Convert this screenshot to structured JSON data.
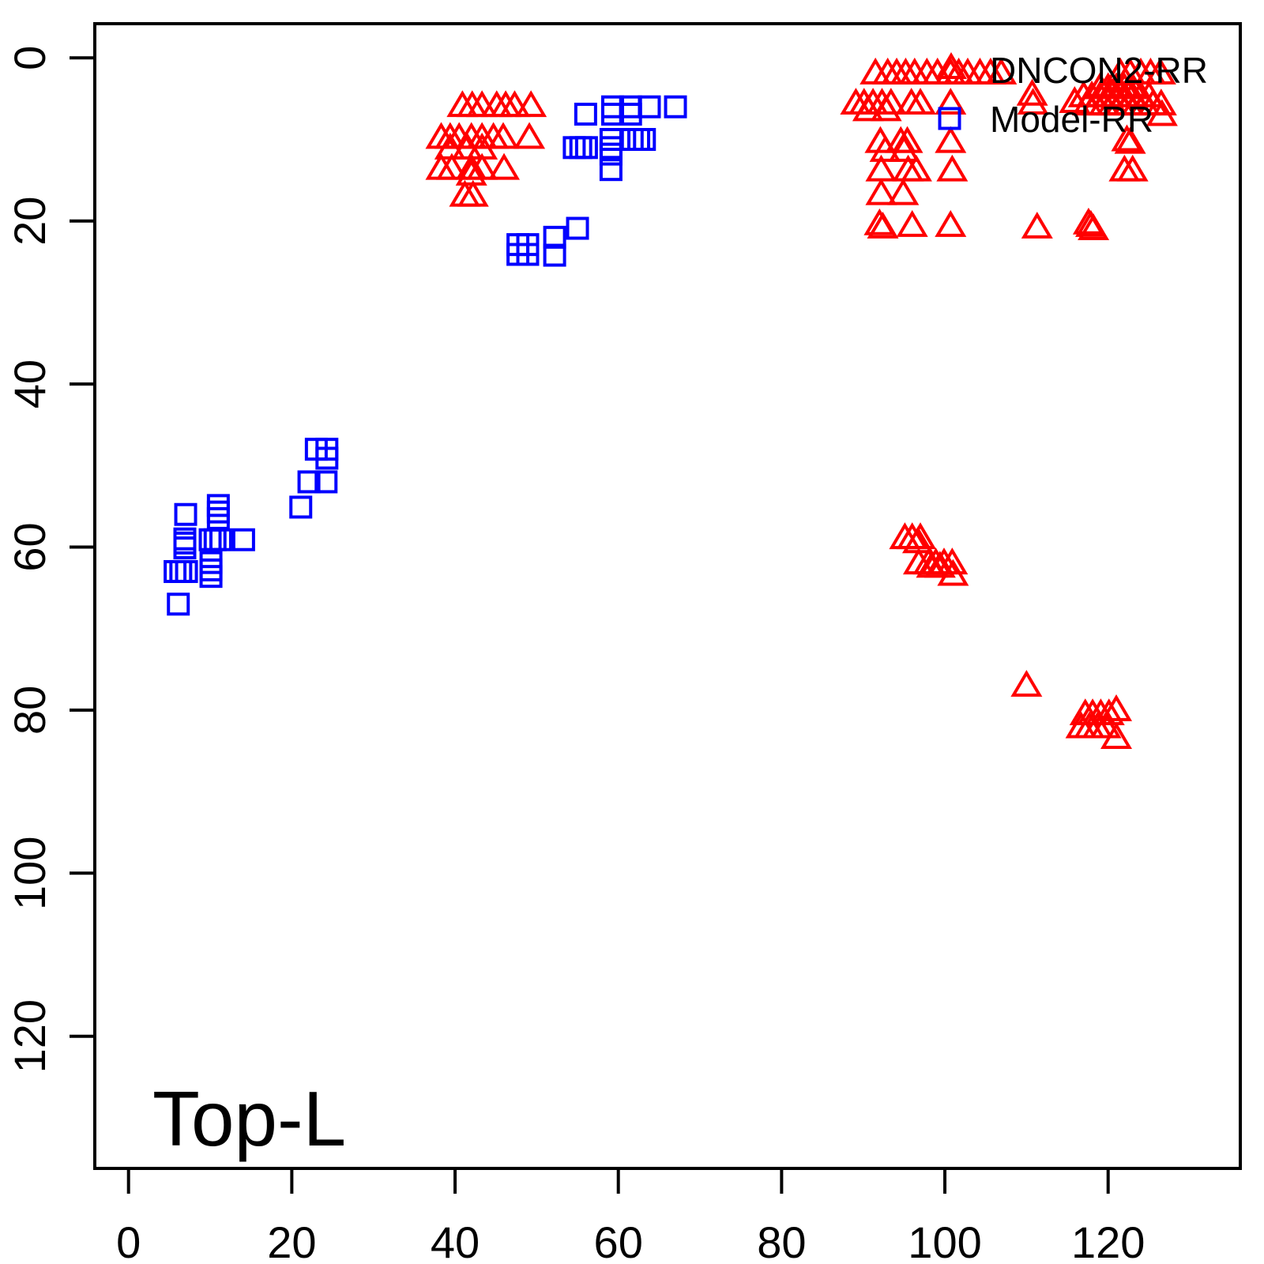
{
  "figure": {
    "background": "#ffffff",
    "frame_color": "#000000"
  },
  "chart_data": {
    "type": "scatter",
    "title": "",
    "xlabel": "",
    "ylabel": "",
    "annotation": "Top-L",
    "x_ticks": [
      0,
      20,
      40,
      60,
      80,
      100,
      120
    ],
    "y_ticks": [
      0,
      20,
      40,
      60,
      80,
      100,
      120
    ],
    "xlim": [
      -4.2,
      136.2
    ],
    "ylim": [
      136.2,
      -4.2
    ],
    "y_axis_reversed": true,
    "grid": false,
    "legend": {
      "position": "topright",
      "entries": [
        {
          "label": "DNCON2-RR",
          "marker": "triangle",
          "color": "#FF0000"
        },
        {
          "label": "Model-RR",
          "marker": "square",
          "color": "#0000FF"
        }
      ]
    },
    "series": [
      {
        "name": "Model-RR",
        "marker": "square",
        "color": "#0000FF",
        "points": [
          [
            56.0,
            6.9
          ],
          [
            59.3,
            6.9
          ],
          [
            61.5,
            6.9
          ],
          [
            59.3,
            6.0
          ],
          [
            61.5,
            6.0
          ],
          [
            63.8,
            6.0
          ],
          [
            67.0,
            6.0
          ],
          [
            54.6,
            11.0
          ],
          [
            55.4,
            11.0
          ],
          [
            56.1,
            11.0
          ],
          [
            59.1,
            10.0
          ],
          [
            59.1,
            11.0
          ],
          [
            59.1,
            11.8
          ],
          [
            61.7,
            10.0
          ],
          [
            62.5,
            10.0
          ],
          [
            63.2,
            10.0
          ],
          [
            59.1,
            13.7
          ],
          [
            55.0,
            20.9
          ],
          [
            47.7,
            22.9
          ],
          [
            48.9,
            22.9
          ],
          [
            47.7,
            24.1
          ],
          [
            48.9,
            24.1
          ],
          [
            52.2,
            22.0
          ],
          [
            52.2,
            24.2
          ],
          [
            23.0,
            48.0
          ],
          [
            24.3,
            48.0
          ],
          [
            24.3,
            49.1
          ],
          [
            22.1,
            52.0
          ],
          [
            24.2,
            52.0
          ],
          [
            21.1,
            55.1
          ],
          [
            7.0,
            56.0
          ],
          [
            11.0,
            54.9
          ],
          [
            11.0,
            55.7
          ],
          [
            11.0,
            56.5
          ],
          [
            6.9,
            59.0
          ],
          [
            6.9,
            59.5
          ],
          [
            6.9,
            60.1
          ],
          [
            10.0,
            59.1
          ],
          [
            10.6,
            59.1
          ],
          [
            11.3,
            59.1
          ],
          [
            14.1,
            59.1
          ],
          [
            10.1,
            61.9
          ],
          [
            10.1,
            62.8
          ],
          [
            10.1,
            63.6
          ],
          [
            5.7,
            63.0
          ],
          [
            6.4,
            63.0
          ],
          [
            7.1,
            63.0
          ],
          [
            6.1,
            67.0
          ]
        ]
      },
      {
        "name": "DNCON2-RR",
        "marker": "triangle",
        "color": "#FF0000",
        "points": [
          [
            40.9,
            5.8
          ],
          [
            42.1,
            5.8
          ],
          [
            43.3,
            5.8
          ],
          [
            45.1,
            5.8
          ],
          [
            46.2,
            5.8
          ],
          [
            47.3,
            5.8
          ],
          [
            49.3,
            5.8
          ],
          [
            38.3,
            9.7
          ],
          [
            39.4,
            9.7
          ],
          [
            40.5,
            9.7
          ],
          [
            42.0,
            9.7
          ],
          [
            43.3,
            9.7
          ],
          [
            44.7,
            9.7
          ],
          [
            45.9,
            9.7
          ],
          [
            49.1,
            9.7
          ],
          [
            39.4,
            11.0
          ],
          [
            41.5,
            11.0
          ],
          [
            43.3,
            11.0
          ],
          [
            38.3,
            13.5
          ],
          [
            39.6,
            13.5
          ],
          [
            42.0,
            13.5
          ],
          [
            43.3,
            13.5
          ],
          [
            46.0,
            13.5
          ],
          [
            42.0,
            14.2
          ],
          [
            41.2,
            16.8
          ],
          [
            42.2,
            16.8
          ],
          [
            91.5,
            1.8
          ],
          [
            93.0,
            1.8
          ],
          [
            94.1,
            1.8
          ],
          [
            95.2,
            1.8
          ],
          [
            96.3,
            1.8
          ],
          [
            97.8,
            1.8
          ],
          [
            99.1,
            1.8
          ],
          [
            100.7,
            1.8
          ],
          [
            101.7,
            1.8
          ],
          [
            102.8,
            1.8
          ],
          [
            104.3,
            1.8
          ],
          [
            105.6,
            1.8
          ],
          [
            106.9,
            1.8
          ],
          [
            89.1,
            5.5
          ],
          [
            90.1,
            5.5
          ],
          [
            91.2,
            5.5
          ],
          [
            92.3,
            5.5
          ],
          [
            93.4,
            5.5
          ],
          [
            95.9,
            5.5
          ],
          [
            97.0,
            5.5
          ],
          [
            100.7,
            5.5
          ],
          [
            90.6,
            6.3
          ],
          [
            92.8,
            6.3
          ],
          [
            92.1,
            10.2
          ],
          [
            94.6,
            10.2
          ],
          [
            95.4,
            10.2
          ],
          [
            100.7,
            10.2
          ],
          [
            92.7,
            11.3
          ],
          [
            95.0,
            11.3
          ],
          [
            92.2,
            13.7
          ],
          [
            95.5,
            13.7
          ],
          [
            96.5,
            13.7
          ],
          [
            100.9,
            13.7
          ],
          [
            92.2,
            16.6
          ],
          [
            94.9,
            16.6
          ],
          [
            92.0,
            20.3
          ],
          [
            92.4,
            20.7
          ],
          [
            96.0,
            20.5
          ],
          [
            100.7,
            20.5
          ],
          [
            110.7,
            4.4
          ],
          [
            110.8,
            5.5
          ],
          [
            121.5,
            1.8
          ],
          [
            122.7,
            1.8
          ],
          [
            124.0,
            1.8
          ],
          [
            125.2,
            1.8
          ],
          [
            126.4,
            1.8
          ],
          [
            115.9,
            5.3
          ],
          [
            119.0,
            3.6
          ],
          [
            120.0,
            3.6
          ],
          [
            121.0,
            3.6
          ],
          [
            122.0,
            3.6
          ],
          [
            123.0,
            3.6
          ],
          [
            117.0,
            4.6
          ],
          [
            118.0,
            4.6
          ],
          [
            119.0,
            4.6
          ],
          [
            120.0,
            4.6
          ],
          [
            121.0,
            4.6
          ],
          [
            122.0,
            4.6
          ],
          [
            123.0,
            4.6
          ],
          [
            124.0,
            4.6
          ],
          [
            125.0,
            4.6
          ],
          [
            117.5,
            5.6
          ],
          [
            118.5,
            5.6
          ],
          [
            119.5,
            5.6
          ],
          [
            120.5,
            5.6
          ],
          [
            121.5,
            5.6
          ],
          [
            122.5,
            5.6
          ],
          [
            123.5,
            5.6
          ],
          [
            124.5,
            5.6
          ],
          [
            125.5,
            5.6
          ],
          [
            126.5,
            5.6
          ],
          [
            126.6,
            6.9
          ],
          [
            122.3,
            10.0
          ],
          [
            122.7,
            10.3
          ],
          [
            122.0,
            13.7
          ],
          [
            123.0,
            13.7
          ],
          [
            111.3,
            20.7
          ],
          [
            117.6,
            20.2
          ],
          [
            117.9,
            20.5
          ],
          [
            118.2,
            20.9
          ],
          [
            95.1,
            58.8
          ],
          [
            96.0,
            58.8
          ],
          [
            97.0,
            58.8
          ],
          [
            96.7,
            59.3
          ],
          [
            96.8,
            61.9
          ],
          [
            98.0,
            61.9
          ],
          [
            98.9,
            61.9
          ],
          [
            99.9,
            61.9
          ],
          [
            100.9,
            61.9
          ],
          [
            98.4,
            62.3
          ],
          [
            99.4,
            62.3
          ],
          [
            101.0,
            63.3
          ],
          [
            110.0,
            76.9
          ],
          [
            121.0,
            79.9
          ],
          [
            117.2,
            80.4
          ],
          [
            118.1,
            80.4
          ],
          [
            119.1,
            80.4
          ],
          [
            120.1,
            80.4
          ],
          [
            116.7,
            82.0
          ],
          [
            117.7,
            82.0
          ],
          [
            118.7,
            82.0
          ],
          [
            119.7,
            82.0
          ],
          [
            121.0,
            83.3
          ]
        ]
      }
    ]
  }
}
